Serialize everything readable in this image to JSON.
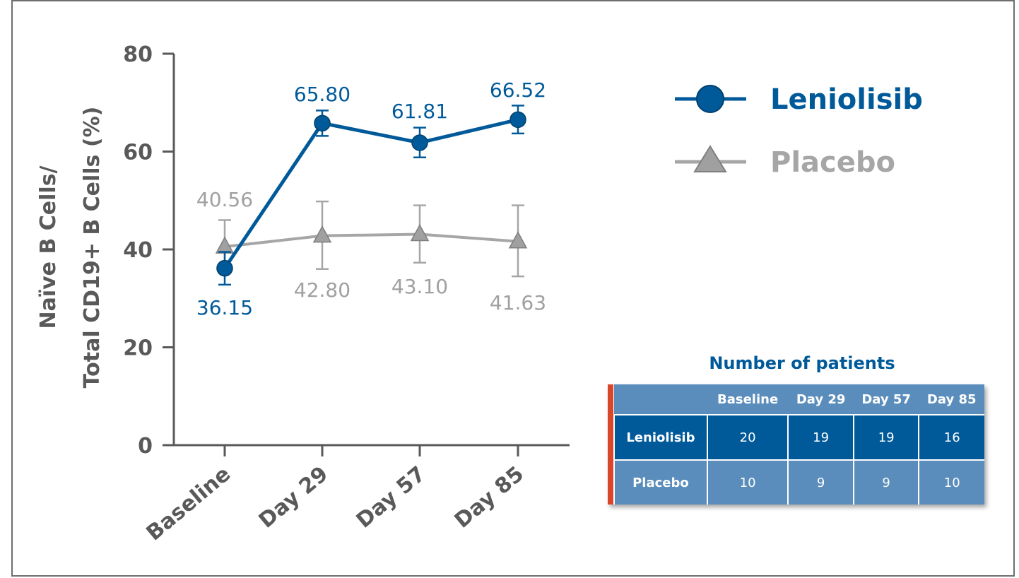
{
  "chart_data": {
    "type": "line",
    "categories": [
      "Baseline",
      "Day 29",
      "Day 57",
      "Day 85"
    ],
    "ylabel_line1": "Naïve B Cells/",
    "ylabel_line2": "Total CD19+ B Cells (%)",
    "ylim": [
      0,
      80
    ],
    "yticks": [
      0,
      20,
      40,
      60,
      80
    ],
    "grid": false,
    "legend_position": "top-right",
    "series": [
      {
        "name": "Leniolisib",
        "marker": "circle",
        "color": "#005a9a",
        "values": [
          36.15,
          65.8,
          61.81,
          66.52
        ],
        "labels": [
          "36.15",
          "65.80",
          "61.81",
          "66.52"
        ],
        "err_low": [
          32.8,
          63.2,
          58.8,
          63.7
        ],
        "err_high": [
          39.5,
          68.4,
          64.9,
          69.4
        ]
      },
      {
        "name": "Placebo",
        "marker": "triangle",
        "color": "#a6a6a6",
        "values": [
          40.56,
          42.8,
          43.1,
          41.63
        ],
        "labels": [
          "40.56",
          "42.80",
          "43.10",
          "41.63"
        ],
        "err_low": [
          35.2,
          36.0,
          37.3,
          34.5
        ],
        "err_high": [
          46.0,
          49.8,
          49.0,
          49.0
        ]
      }
    ]
  },
  "patients_table": {
    "title": "Number of patients",
    "columns": [
      "Baseline",
      "Day 29",
      "Day 57",
      "Day 85"
    ],
    "rows": [
      {
        "label": "Leniolisib",
        "values": [
          "20",
          "19",
          "19",
          "16"
        ]
      },
      {
        "label": "Placebo",
        "values": [
          "10",
          "9",
          "9",
          "10"
        ]
      }
    ]
  }
}
